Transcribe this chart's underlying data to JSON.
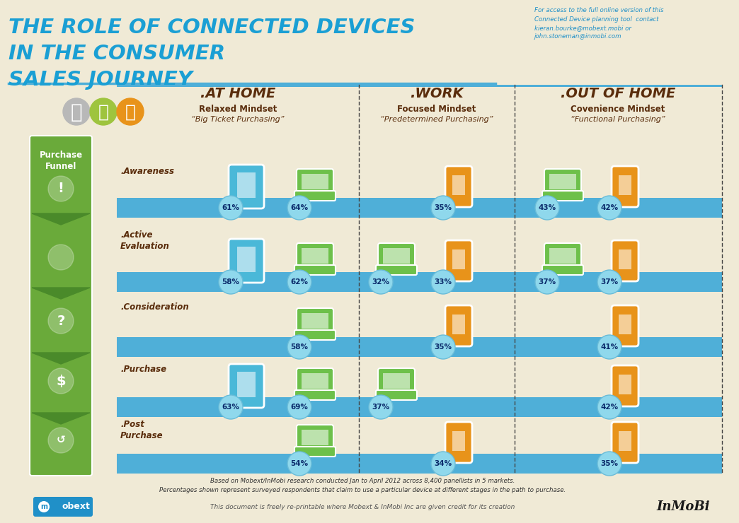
{
  "title_line1": "THE ROLE OF CONNECTED DEVICES",
  "title_line2": "IN THE CONSUMER",
  "title_line3": "SALES JOURNEY",
  "bg_color": "#f0ead6",
  "title_color": "#1a9fd4",
  "section_headers": [
    ".AT HOME",
    ".WORK",
    ".OUT OF HOME"
  ],
  "section_sub1": [
    "Relaxed Mindset",
    "Focused Mindset",
    "Covenience Mindset"
  ],
  "section_sub2": [
    "“Big Ticket Purchasing”",
    "“Predetermined Purchasing”",
    "“Functional Purchasing”"
  ],
  "row_labels": [
    ".Awareness",
    ".Active\nEvaluation",
    ".Consideration",
    ".Purchase",
    ".Post\nPurchase"
  ],
  "header_color": "#5a2d0c",
  "funnel_bg": "#6aaa3a",
  "funnel_dark": "#4a8a2a",
  "row_stripe_color": "#4fafd8",
  "contact_text": "For access to the full online version of this\nConnected Device planning tool  contact\nkieran.bourke@mobext.mobi or\njohn.stoneman@inmobi.com",
  "footer_text1": "Based on Mobext/InMobi research conducted Jan to April 2012 across 8,400 panellists in 5 markets.",
  "footer_text2": "Percentages shown represent surveyed respondents that claim to use a particular device at different stages in the path to purchase.",
  "copyright_text": "This document is freely re-printable where Mobext & InMobi Inc are given credit for its creation",
  "tablet_color": "#4ab8d8",
  "laptop_color": "#6dc04a",
  "phone_orange_color": "#e8931a",
  "laptop_dark_color": "#5aaa3a",
  "bubble_color": "#7fd4e8",
  "bubble_text_color": "#1a4a8a",
  "dpi": 100,
  "figsize": [
    10.44,
    7.4
  ],
  "rows_data": [
    [
      61,
      64,
      null,
      35,
      43,
      42
    ],
    [
      58,
      62,
      32,
      33,
      37,
      37
    ],
    [
      null,
      58,
      null,
      35,
      null,
      41
    ],
    [
      63,
      69,
      37,
      null,
      null,
      42
    ],
    [
      null,
      54,
      null,
      34,
      null,
      35
    ]
  ]
}
